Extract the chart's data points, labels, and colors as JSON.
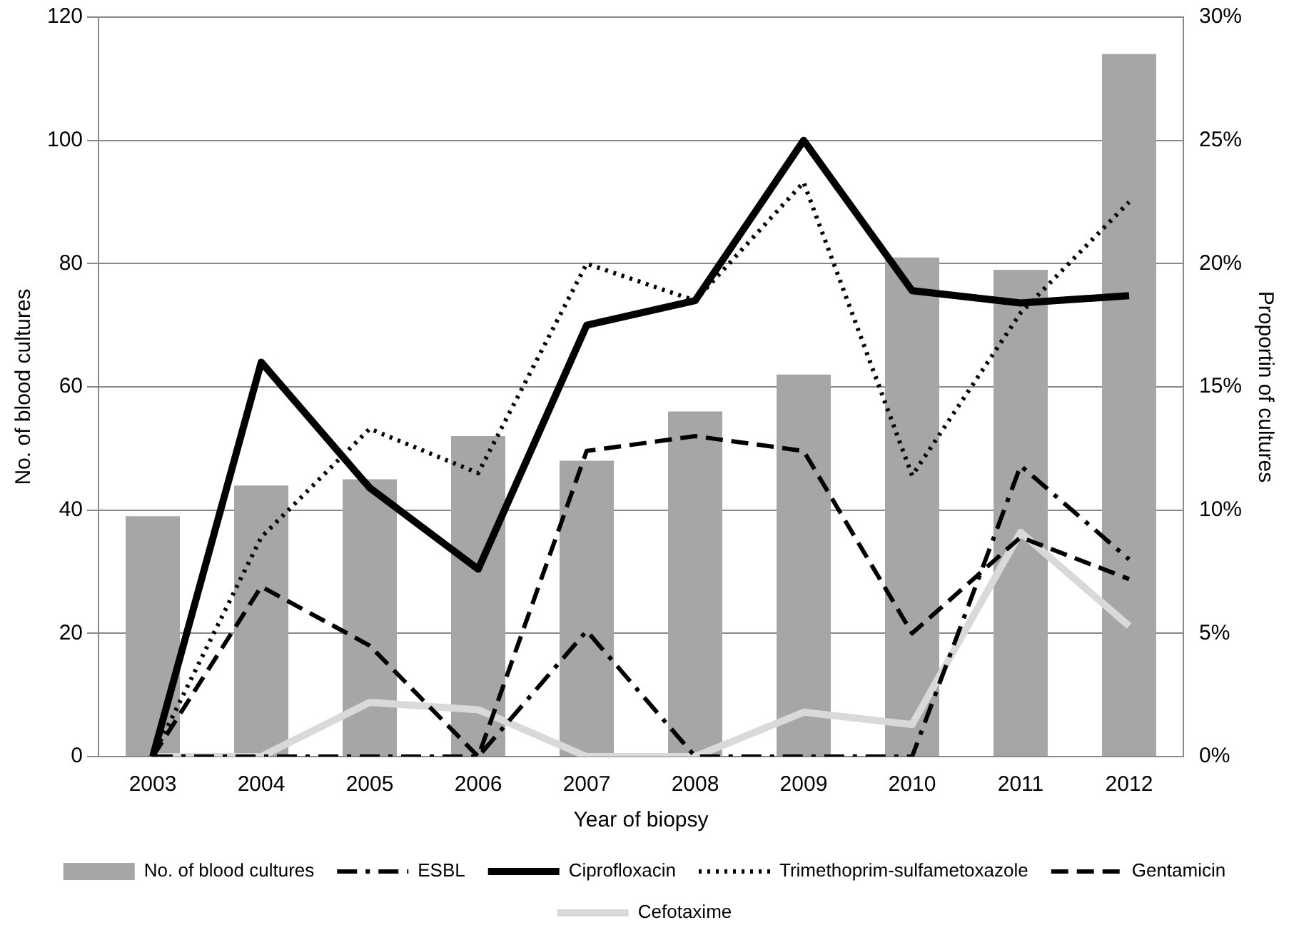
{
  "chart_data": {
    "type": "bar",
    "xlabel": "Year of biopsy",
    "ylabel": "No. of blood cultures",
    "y2label": "Proportin of cultures",
    "categories": [
      "2003",
      "2004",
      "2005",
      "2006",
      "2007",
      "2008",
      "2009",
      "2010",
      "2011",
      "2012"
    ],
    "series": [
      {
        "name": "No. of blood cultures",
        "color": "#a6a6a6",
        "values": [
          39,
          44,
          45,
          52,
          48,
          56,
          62,
          81,
          79,
          114
        ]
      },
      {
        "name": "ESBL",
        "type": "line",
        "axis": "y2",
        "color": "#000000",
        "line_style": "dashdot",
        "values": [
          0,
          0,
          0,
          0,
          5.1,
          0,
          0,
          0,
          11.8,
          8.0
        ]
      },
      {
        "name": "Ciprofloxacin",
        "type": "line",
        "axis": "y2",
        "color": "#000000",
        "line_style": "solid",
        "values": [
          0,
          16.0,
          10.9,
          7.6,
          17.5,
          18.5,
          25.0,
          18.9,
          18.4,
          18.7
        ]
      },
      {
        "name": "Trimethoprim-sulfametoxazole",
        "type": "line",
        "axis": "y2",
        "color": "#000000",
        "line_style": "dotted",
        "values": [
          0,
          8.9,
          13.3,
          11.5,
          20.0,
          18.5,
          23.3,
          11.4,
          18.0,
          22.5
        ]
      },
      {
        "name": "Gentamicin",
        "type": "line",
        "axis": "y2",
        "color": "#000000",
        "line_style": "dashed",
        "values": [
          0,
          6.9,
          4.5,
          0,
          12.4,
          13.0,
          12.4,
          5.0,
          8.9,
          7.2
        ]
      },
      {
        "name": "Cefotaxime",
        "type": "line",
        "axis": "y2",
        "color": "#d9d9d9",
        "line_style": "solid",
        "values": [
          0,
          0,
          2.2,
          1.9,
          0,
          0,
          1.8,
          1.3,
          9.1,
          5.3
        ]
      }
    ],
    "ylim": [
      0,
      120
    ],
    "yticks": [
      0,
      20,
      40,
      60,
      80,
      100,
      120
    ],
    "y2lim": [
      0,
      30
    ],
    "y2ticks": [
      {
        "value": 0,
        "label": "0%"
      },
      {
        "value": 5,
        "label": "5%"
      },
      {
        "value": 10,
        "label": "10%"
      },
      {
        "value": 15,
        "label": "15%"
      },
      {
        "value": 20,
        "label": "20%"
      },
      {
        "value": 25,
        "label": "25%"
      },
      {
        "value": 30,
        "label": "30%"
      }
    ],
    "grid": "y",
    "legend": "bottom",
    "marker": "none"
  }
}
